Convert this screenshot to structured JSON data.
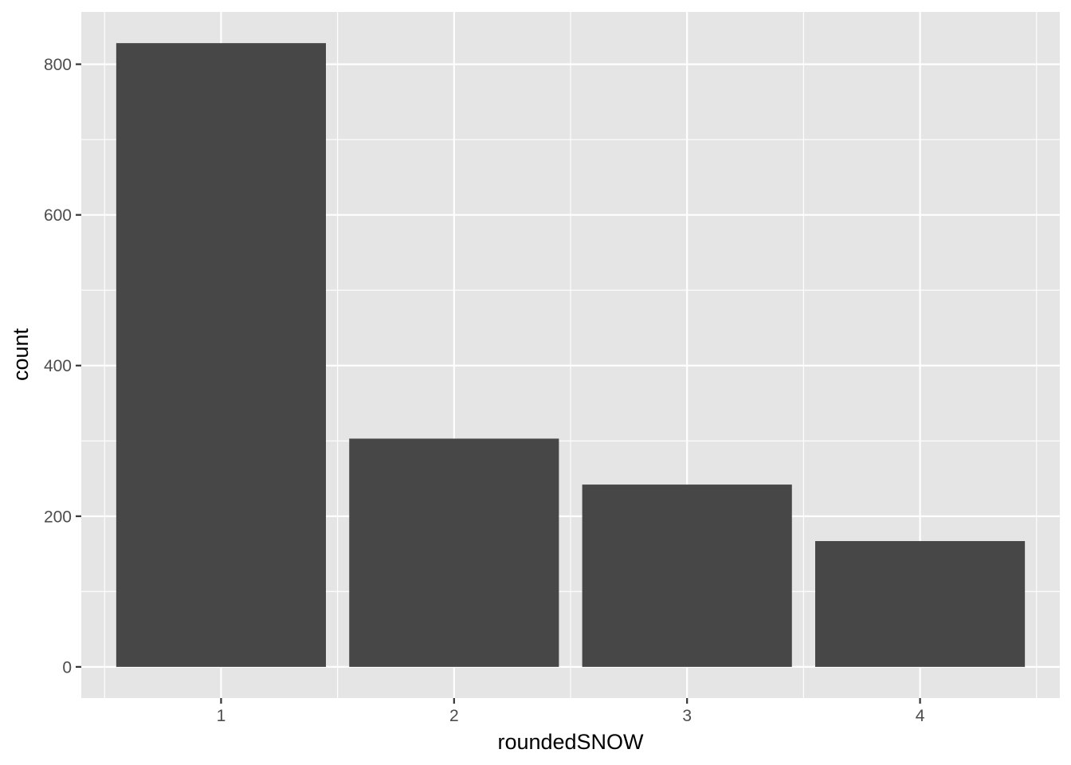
{
  "chart_data": {
    "type": "bar",
    "categories": [
      "1",
      "2",
      "3",
      "4"
    ],
    "values": [
      828,
      303,
      242,
      167
    ],
    "xlabel": "roundedSNOW",
    "ylabel": "count",
    "ylim": [
      -41.4,
      869.4
    ],
    "yticks": [
      0,
      200,
      400,
      600,
      800
    ],
    "grid": true,
    "colors": {
      "panel_background": "#e5e5e5",
      "grid": "#ffffff",
      "bar_fill": "#474747",
      "tick_label": "#4d4d4d",
      "axis_title": "#000000"
    }
  }
}
